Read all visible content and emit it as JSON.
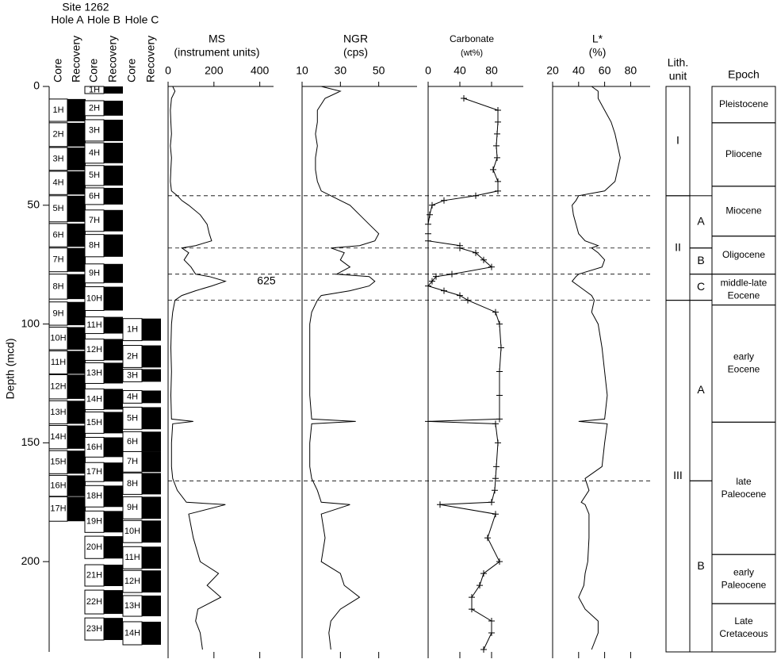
{
  "site": "Site 1262",
  "holes": [
    {
      "name": "Hole A",
      "core_header": "Core",
      "recovery_header": "Recovery",
      "cores": [
        {
          "label": "1H",
          "top": 5.3,
          "bottom": 14.7
        },
        {
          "label": "2H",
          "top": 15.3,
          "bottom": 25.3
        },
        {
          "label": "3H",
          "top": 25.7,
          "bottom": 35.3
        },
        {
          "label": "4H",
          "top": 35.7,
          "bottom": 45.5
        },
        {
          "label": "5H",
          "top": 46,
          "bottom": 57
        },
        {
          "label": "6H",
          "top": 57.7,
          "bottom": 67.5
        },
        {
          "label": "7H",
          "top": 68,
          "bottom": 78
        },
        {
          "label": "8H",
          "top": 79,
          "bottom": 89.5
        },
        {
          "label": "9H",
          "top": 90.7,
          "bottom": 100.5
        },
        {
          "label": "10H",
          "top": 101.3,
          "bottom": 110.8
        },
        {
          "label": "11H",
          "top": 111.3,
          "bottom": 121
        },
        {
          "label": "12H",
          "top": 121.3,
          "bottom": 131.5
        },
        {
          "label": "13H",
          "top": 132.3,
          "bottom": 142
        },
        {
          "label": "14H",
          "top": 142.7,
          "bottom": 152.5
        },
        {
          "label": "15H",
          "top": 153.3,
          "bottom": 163
        },
        {
          "label": "16H",
          "top": 163.7,
          "bottom": 172.5
        },
        {
          "label": "17H",
          "top": 172.7,
          "bottom": 183
        }
      ]
    },
    {
      "name": "Hole B",
      "core_header": "Core",
      "recovery_header": "Recovery",
      "cores": [
        {
          "label": "1H",
          "top": 0,
          "bottom": 3
        },
        {
          "label": "2H",
          "top": 6,
          "bottom": 12.3
        },
        {
          "label": "3H",
          "top": 14,
          "bottom": 23
        },
        {
          "label": "4H",
          "top": 23.7,
          "bottom": 32.3
        },
        {
          "label": "5H",
          "top": 33.3,
          "bottom": 41.7
        },
        {
          "label": "6H",
          "top": 42.7,
          "bottom": 49.7
        },
        {
          "label": "7H",
          "top": 52,
          "bottom": 61
        },
        {
          "label": "8H",
          "top": 62.3,
          "bottom": 71.7
        },
        {
          "label": "9H",
          "top": 74.7,
          "bottom": 82.7
        },
        {
          "label": "10H",
          "top": 84.3,
          "bottom": 94.3
        },
        {
          "label": "11H",
          "top": 97,
          "bottom": 104
        },
        {
          "label": "12H",
          "top": 106.3,
          "bottom": 115.3
        },
        {
          "label": "13H",
          "top": 116.3,
          "bottom": 125
        },
        {
          "label": "14H",
          "top": 127.3,
          "bottom": 136
        },
        {
          "label": "15H",
          "top": 137,
          "bottom": 146
        },
        {
          "label": "16H",
          "top": 147.7,
          "bottom": 156
        },
        {
          "label": "17H",
          "top": 158.3,
          "bottom": 166.3
        },
        {
          "label": "18H",
          "top": 168,
          "bottom": 177
        },
        {
          "label": "19H",
          "top": 178.7,
          "bottom": 187.7
        },
        {
          "label": "20H",
          "top": 189.3,
          "bottom": 198.7
        },
        {
          "label": "21H",
          "top": 201.3,
          "bottom": 210.3
        },
        {
          "label": "22H",
          "top": 212,
          "bottom": 222
        },
        {
          "label": "23H",
          "top": 223.7,
          "bottom": 233
        }
      ]
    },
    {
      "name": "Hole C",
      "core_header": "Core",
      "recovery_header": "Recovery",
      "cores": [
        {
          "label": "1H",
          "top": 97.7,
          "bottom": 107
        },
        {
          "label": "2H",
          "top": 109,
          "bottom": 118.3
        },
        {
          "label": "3H",
          "top": 119,
          "bottom": 124.3
        },
        {
          "label": "4H",
          "top": 128,
          "bottom": 133.3
        },
        {
          "label": "5H",
          "top": 135,
          "bottom": 144.3
        },
        {
          "label": "6H",
          "top": 145.3,
          "bottom": 153.7
        },
        {
          "label": "7H",
          "top": 153.7,
          "bottom": 162.3
        },
        {
          "label": "8H",
          "top": 162.7,
          "bottom": 171.7
        },
        {
          "label": "9H",
          "top": 172.7,
          "bottom": 182
        },
        {
          "label": "10H",
          "top": 182.7,
          "bottom": 192
        },
        {
          "label": "11H",
          "top": 193.7,
          "bottom": 203
        },
        {
          "label": "12H",
          "top": 203.7,
          "bottom": 213
        },
        {
          "label": "13H",
          "top": 214.3,
          "bottom": 223
        },
        {
          "label": "14H",
          "top": 225.3,
          "bottom": 235
        }
      ]
    }
  ],
  "depth_axis": {
    "label": "Depth (mcd)",
    "lim": [
      0,
      238
    ],
    "ticks": [
      0,
      50,
      100,
      150,
      200
    ]
  },
  "boundaries": [
    46,
    68,
    79,
    90,
    166
  ],
  "chart_data": [
    {
      "type": "line",
      "title": "MS",
      "subtitle": "(instrument units)",
      "xlim": [
        0,
        460
      ],
      "xticks": [
        0,
        200,
        400
      ],
      "color": "#000",
      "annotation": "625",
      "depth": [
        0,
        2,
        5,
        10,
        15,
        20,
        25,
        30,
        35,
        40,
        44,
        46,
        48,
        50,
        54,
        58,
        62,
        65,
        67,
        68,
        70,
        73,
        76,
        79,
        80,
        82,
        84,
        86,
        88,
        90,
        95,
        100,
        110,
        120,
        130,
        140,
        141,
        142,
        150,
        160,
        165,
        170,
        175,
        176,
        180,
        190,
        200,
        205,
        210,
        215,
        220,
        225,
        230,
        237
      ],
      "values": [
        20,
        30,
        15,
        10,
        12,
        15,
        10,
        15,
        12,
        10,
        15,
        40,
        60,
        90,
        140,
        170,
        180,
        190,
        120,
        60,
        90,
        70,
        100,
        120,
        180,
        250,
        190,
        120,
        60,
        30,
        20,
        15,
        12,
        15,
        12,
        15,
        110,
        20,
        15,
        15,
        20,
        40,
        80,
        250,
        90,
        110,
        140,
        220,
        170,
        230,
        130,
        120,
        140,
        150
      ]
    },
    {
      "type": "line",
      "title": "NGR",
      "subtitle": "(cps)",
      "xlim": [
        10,
        70
      ],
      "xticks": [
        10,
        30,
        50
      ],
      "color": "#000",
      "depth": [
        0,
        2,
        5,
        10,
        15,
        20,
        25,
        30,
        35,
        40,
        44,
        46,
        48,
        50,
        54,
        58,
        62,
        65,
        67,
        68,
        70,
        73,
        76,
        79,
        80,
        82,
        84,
        86,
        88,
        90,
        95,
        100,
        110,
        120,
        130,
        140,
        141,
        142,
        150,
        160,
        165,
        170,
        175,
        176,
        180,
        190,
        200,
        205,
        210,
        215,
        220,
        225,
        230,
        237
      ],
      "values": [
        20,
        30,
        22,
        18,
        18,
        17,
        18,
        17,
        17,
        18,
        20,
        25,
        30,
        35,
        40,
        45,
        50,
        48,
        40,
        25,
        32,
        30,
        35,
        28,
        45,
        48,
        45,
        35,
        20,
        18,
        15,
        14,
        14,
        14,
        14,
        15,
        38,
        15,
        14,
        14,
        15,
        18,
        20,
        35,
        20,
        22,
        20,
        30,
        32,
        40,
        30,
        25,
        24,
        25
      ]
    },
    {
      "type": "line",
      "title": "Carbonate",
      "subtitle": "(wt%)",
      "xlim": [
        0,
        120
      ],
      "xticks": [
        0,
        40,
        80
      ],
      "color": "#000",
      "markers": true,
      "depth": [
        0,
        2,
        5,
        10,
        15,
        20,
        25,
        30,
        35,
        40,
        44,
        46,
        48,
        50,
        54,
        58,
        62,
        65,
        67,
        68,
        70,
        73,
        76,
        79,
        80,
        82,
        84,
        86,
        88,
        90,
        95,
        100,
        110,
        120,
        130,
        140,
        141,
        142,
        150,
        160,
        165,
        170,
        175,
        176,
        180,
        190,
        200,
        205,
        210,
        215,
        220,
        225,
        230,
        237
      ],
      "values": [
        null,
        null,
        45,
        88,
        88,
        87,
        86,
        87,
        82,
        88,
        88,
        60,
        20,
        5,
        2,
        0,
        0,
        0,
        40,
        40,
        60,
        70,
        80,
        30,
        10,
        5,
        0,
        20,
        40,
        50,
        85,
        90,
        92,
        90,
        90,
        90,
        0,
        85,
        88,
        86,
        85,
        84,
        80,
        15,
        85,
        75,
        90,
        70,
        65,
        55,
        55,
        80,
        80,
        70
      ]
    },
    {
      "type": "line",
      "title": "L*",
      "subtitle": "(%)",
      "xlim": [
        20,
        95
      ],
      "xticks": [
        20,
        40,
        60,
        80
      ],
      "color": "#000",
      "depth": [
        0,
        2,
        5,
        10,
        15,
        20,
        25,
        30,
        35,
        40,
        44,
        46,
        48,
        50,
        54,
        58,
        62,
        65,
        67,
        68,
        70,
        73,
        76,
        79,
        80,
        82,
        84,
        86,
        88,
        90,
        95,
        100,
        110,
        120,
        130,
        140,
        141,
        142,
        150,
        160,
        165,
        170,
        175,
        176,
        180,
        190,
        200,
        205,
        210,
        215,
        220,
        225,
        230,
        237
      ],
      "values": [
        50,
        55,
        55,
        60,
        65,
        68,
        70,
        72,
        70,
        68,
        60,
        40,
        38,
        35,
        36,
        38,
        40,
        45,
        55,
        50,
        55,
        60,
        58,
        40,
        38,
        35,
        40,
        45,
        50,
        52,
        50,
        55,
        58,
        60,
        62,
        60,
        40,
        62,
        60,
        58,
        45,
        48,
        42,
        45,
        48,
        48,
        47,
        45,
        44,
        40,
        45,
        55,
        55,
        50
      ]
    }
  ],
  "lithology": {
    "header": [
      "Lith.",
      "unit"
    ],
    "epoch_header": "Epoch",
    "units": [
      {
        "label": "I",
        "top": 0,
        "bottom": 46
      },
      {
        "label": "II",
        "top": 46,
        "bottom": 90
      },
      {
        "label": "III",
        "top": 90,
        "bottom": 238
      }
    ],
    "subunits": [
      {
        "label": "A",
        "top": 46,
        "bottom": 68
      },
      {
        "label": "B",
        "top": 68,
        "bottom": 79
      },
      {
        "label": "C",
        "top": 79,
        "bottom": 90
      },
      {
        "label": "A",
        "top": 90,
        "bottom": 166
      },
      {
        "label": "B",
        "top": 166,
        "bottom": 238
      }
    ],
    "epochs": [
      {
        "lines": [
          "Pleistocene"
        ],
        "top": 0,
        "bottom": 15.3
      },
      {
        "lines": [
          "Pliocene"
        ],
        "top": 15.3,
        "bottom": 42
      },
      {
        "lines": [
          "Miocene"
        ],
        "top": 42,
        "bottom": 63
      },
      {
        "lines": [
          "Oligocene"
        ],
        "top": 63,
        "bottom": 79
      },
      {
        "lines": [
          "middle-late",
          "Eocene"
        ],
        "top": 79,
        "bottom": 92
      },
      {
        "lines": [
          "early",
          "Eocene"
        ],
        "top": 92,
        "bottom": 141.3
      },
      {
        "lines": [
          "late",
          "Paleocene"
        ],
        "top": 141.3,
        "bottom": 197
      },
      {
        "lines": [
          "early",
          "Paleocene"
        ],
        "top": 197,
        "bottom": 217.7
      },
      {
        "lines": [
          "Late",
          "Cretaceous"
        ],
        "top": 217.7,
        "bottom": 238
      }
    ]
  }
}
